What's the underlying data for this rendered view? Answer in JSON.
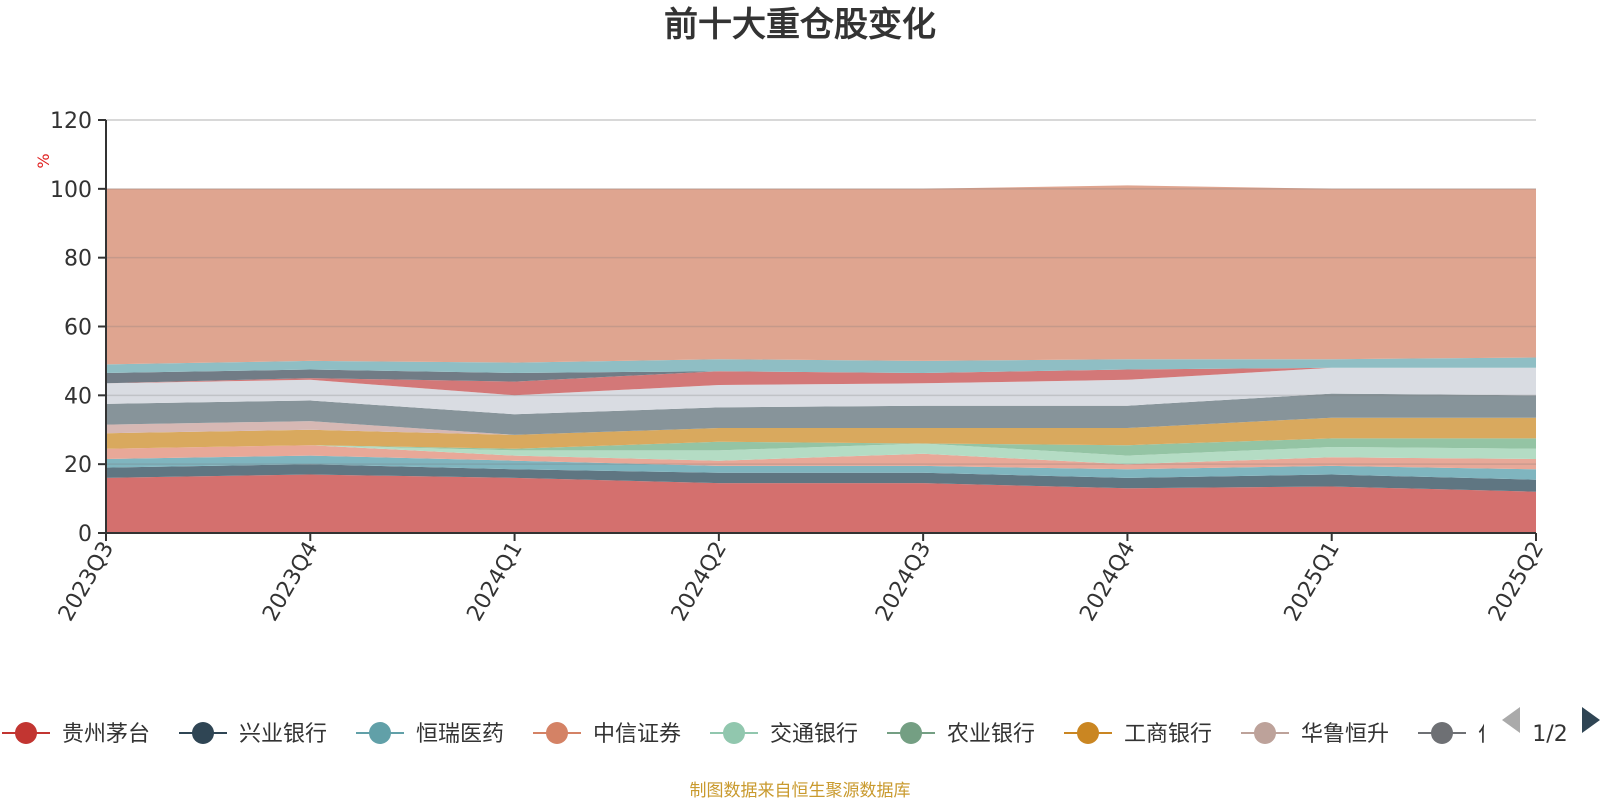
{
  "chart_data": {
    "type": "area",
    "stacked": true,
    "title": "前十大重仓股变化",
    "ylabel": "%",
    "ylim": [
      0,
      120
    ],
    "yticks": [
      0,
      20,
      40,
      60,
      80,
      100,
      120
    ],
    "grid": true,
    "categories": [
      "2023Q3",
      "2023Q4",
      "2024Q1",
      "2024Q2",
      "2024Q3",
      "2024Q4",
      "2025Q1",
      "2025Q2"
    ],
    "series": [
      {
        "name": "贵州茅台",
        "color": "#d4706e",
        "values": [
          16,
          17,
          16,
          14.5,
          14.5,
          13,
          13.5,
          12
        ]
      },
      {
        "name": "兴业银行",
        "color": "#5f7682",
        "values": [
          3,
          3,
          2.5,
          3,
          3,
          3,
          3.5,
          3.5
        ]
      },
      {
        "name": "恒瑞医药",
        "color": "#7fb5bf",
        "values": [
          2.5,
          2.5,
          2.5,
          2,
          2,
          2.5,
          2.5,
          3
        ]
      },
      {
        "name": "中信证券",
        "color": "#e8a898",
        "values": [
          3,
          3,
          1.5,
          1.5,
          3.5,
          1.5,
          2.5,
          3
        ]
      },
      {
        "name": "交通银行",
        "color": "#b4dcc4",
        "values": [
          0,
          0,
          1.5,
          3,
          3,
          2.5,
          3,
          3
        ]
      },
      {
        "name": "农业银行",
        "color": "#94c4a4",
        "values": [
          0,
          0,
          0.5,
          2.5,
          0,
          3,
          2.5,
          3
        ]
      },
      {
        "name": "工商银行",
        "color": "#d9a95e",
        "values": [
          4.5,
          4.5,
          4,
          4,
          4.5,
          5,
          6,
          6
        ]
      },
      {
        "name": "华鲁恒升",
        "color": "#d6b8b4",
        "values": [
          2.5,
          2.5,
          0,
          0,
          0,
          0,
          0,
          0
        ]
      },
      {
        "name": "",
        "color": "#87949a",
        "values": [
          6,
          6,
          6,
          6,
          6.5,
          6.5,
          7,
          6.5
        ]
      },
      {
        "name": "",
        "color": "#d9dce2",
        "values": [
          6,
          6,
          5.5,
          6.5,
          6.5,
          7.5,
          7.5,
          8
        ]
      },
      {
        "name": "",
        "color": "#d37878",
        "values": [
          0,
          0.5,
          4,
          4,
          3,
          3,
          0,
          0
        ]
      },
      {
        "name": "",
        "color": "#717c86",
        "values": [
          3,
          2.5,
          2.5,
          0,
          0,
          0,
          0,
          0
        ]
      },
      {
        "name": "",
        "color": "#8fbec4",
        "values": [
          2.5,
          2.5,
          3,
          3.5,
          3.5,
          3,
          2.5,
          3
        ]
      },
      {
        "name": "",
        "color": "#dfa590",
        "values": [
          51,
          50,
          50.5,
          49.5,
          50,
          50.5,
          49.5,
          49
        ]
      }
    ],
    "legend": {
      "position": "bottom",
      "items": [
        {
          "label": "贵州茅台",
          "color": "#c23531"
        },
        {
          "label": "兴业银行",
          "color": "#2f4554"
        },
        {
          "label": "恒瑞医药",
          "color": "#61a0a8"
        },
        {
          "label": "中信证券",
          "color": "#d48265"
        },
        {
          "label": "交通银行",
          "color": "#91c7ae"
        },
        {
          "label": "农业银行",
          "color": "#749f83"
        },
        {
          "label": "工商银行",
          "color": "#ca8622"
        },
        {
          "label": "华鲁恒升",
          "color": "#bda29a"
        },
        {
          "label": "仁",
          "color": "#6e7074"
        }
      ],
      "page_indicator": "1/2"
    },
    "source_note": "制图数据来自恒生聚源数据库"
  }
}
